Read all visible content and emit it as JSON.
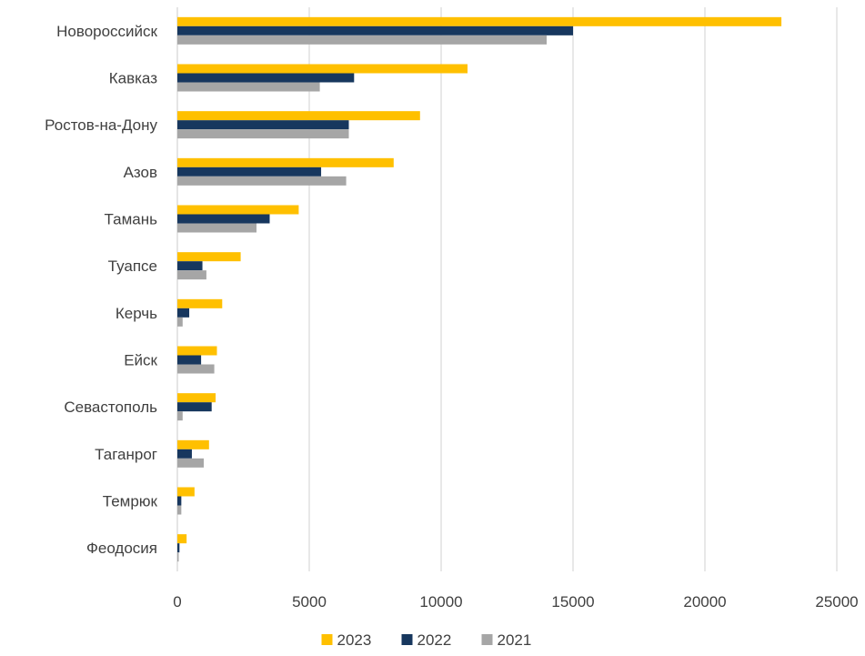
{
  "chart_data": {
    "type": "bar",
    "orientation": "horizontal",
    "categories": [
      "Новороссийск",
      "Кавказ",
      "Ростов-на-Дону",
      "Азов",
      "Тамань",
      "Туапсе",
      "Керчь",
      "Ейск",
      "Севастополь",
      "Таганрог",
      "Темрюк",
      "Феодосия"
    ],
    "series": [
      {
        "name": "2023",
        "color": "#FFC000",
        "values": [
          22900,
          11000,
          9200,
          8200,
          4600,
          2400,
          1700,
          1500,
          1450,
          1200,
          650,
          350
        ]
      },
      {
        "name": "2022",
        "color": "#17375E",
        "values": [
          15000,
          6700,
          6500,
          5450,
          3500,
          950,
          450,
          900,
          1300,
          550,
          150,
          80
        ]
      },
      {
        "name": "2021",
        "color": "#A6A6A6",
        "values": [
          14000,
          5400,
          6500,
          6400,
          3000,
          1100,
          200,
          1400,
          200,
          1000,
          150,
          50
        ]
      }
    ],
    "x_ticks": [
      "0",
      "5000",
      "10000",
      "15000",
      "20000",
      "25000"
    ],
    "xlim": [
      0,
      25000
    ],
    "grid": "vertical",
    "legend_position": "bottom"
  }
}
